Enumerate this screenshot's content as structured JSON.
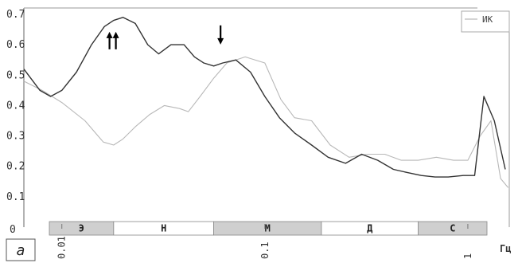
{
  "chart_data": {
    "type": "line",
    "xscale": "log",
    "xlim": [
      0.0065,
      1.6
    ],
    "ylim": [
      0.0,
      0.7
    ],
    "yticks": [
      "0.1",
      "0.2",
      "0.3",
      "0.4",
      "0.5",
      "0.6",
      "0.7"
    ],
    "y_zero_label": "0",
    "xticks": [
      {
        "value": 0.01,
        "label": "0.01"
      },
      {
        "value": 0.1,
        "label": "0.1"
      },
      {
        "value": 1,
        "label": "1"
      }
    ],
    "xunit": "Гц",
    "grid": false,
    "legend_position": "top-right",
    "series": [
      {
        "name": "",
        "color": "#333333",
        "x": [
          0.0065,
          0.0078,
          0.0088,
          0.01,
          0.0118,
          0.014,
          0.0162,
          0.018,
          0.02,
          0.023,
          0.0265,
          0.03,
          0.0345,
          0.04,
          0.045,
          0.05,
          0.056,
          0.062,
          0.072,
          0.085,
          0.1,
          0.118,
          0.14,
          0.17,
          0.205,
          0.25,
          0.3,
          0.36,
          0.43,
          0.5,
          0.59,
          0.69,
          0.8,
          0.95,
          1.08,
          1.2,
          1.35,
          1.53
        ],
        "y": [
          0.52,
          0.45,
          0.43,
          0.45,
          0.51,
          0.6,
          0.66,
          0.68,
          0.69,
          0.67,
          0.6,
          0.57,
          0.6,
          0.6,
          0.56,
          0.54,
          0.53,
          0.54,
          0.55,
          0.51,
          0.43,
          0.36,
          0.31,
          0.27,
          0.23,
          0.21,
          0.24,
          0.22,
          0.19,
          0.18,
          0.17,
          0.165,
          0.165,
          0.17,
          0.17,
          0.43,
          0.35,
          0.19
        ]
      },
      {
        "name": "ИК",
        "color": "#b8b8b8",
        "x": [
          0.0065,
          0.008,
          0.01,
          0.013,
          0.016,
          0.018,
          0.02,
          0.023,
          0.027,
          0.032,
          0.038,
          0.042,
          0.048,
          0.056,
          0.065,
          0.08,
          0.1,
          0.12,
          0.14,
          0.17,
          0.21,
          0.26,
          0.32,
          0.39,
          0.47,
          0.57,
          0.7,
          0.85,
          1.0,
          1.15,
          1.3,
          1.45,
          1.58
        ],
        "y": [
          0.48,
          0.45,
          0.41,
          0.35,
          0.28,
          0.27,
          0.29,
          0.33,
          0.37,
          0.4,
          0.39,
          0.38,
          0.43,
          0.49,
          0.54,
          0.56,
          0.54,
          0.42,
          0.36,
          0.35,
          0.27,
          0.23,
          0.24,
          0.24,
          0.22,
          0.22,
          0.23,
          0.22,
          0.22,
          0.3,
          0.35,
          0.16,
          0.13
        ]
      }
    ],
    "bands": [
      {
        "label": "Э",
        "x0": 0.0065,
        "x1": 0.018,
        "shade": "#cfcfcf"
      },
      {
        "label": "Н",
        "x0": 0.018,
        "x1": 0.056,
        "shade": "#ffffff"
      },
      {
        "label": "М",
        "x0": 0.056,
        "x1": 0.19,
        "shade": "#cfcfcf"
      },
      {
        "label": "Д",
        "x0": 0.19,
        "x1": 0.57,
        "shade": "#ffffff"
      },
      {
        "label": "С",
        "x0": 0.57,
        "x1": 1.6,
        "shade": "#cfcfcf"
      }
    ],
    "annotations": [
      {
        "kind": "double-up-arrow",
        "x": 0.0178,
        "y": 0.585
      },
      {
        "kind": "down-arrow",
        "x": 0.0605,
        "y": 0.585
      }
    ],
    "panel_label": "a"
  }
}
